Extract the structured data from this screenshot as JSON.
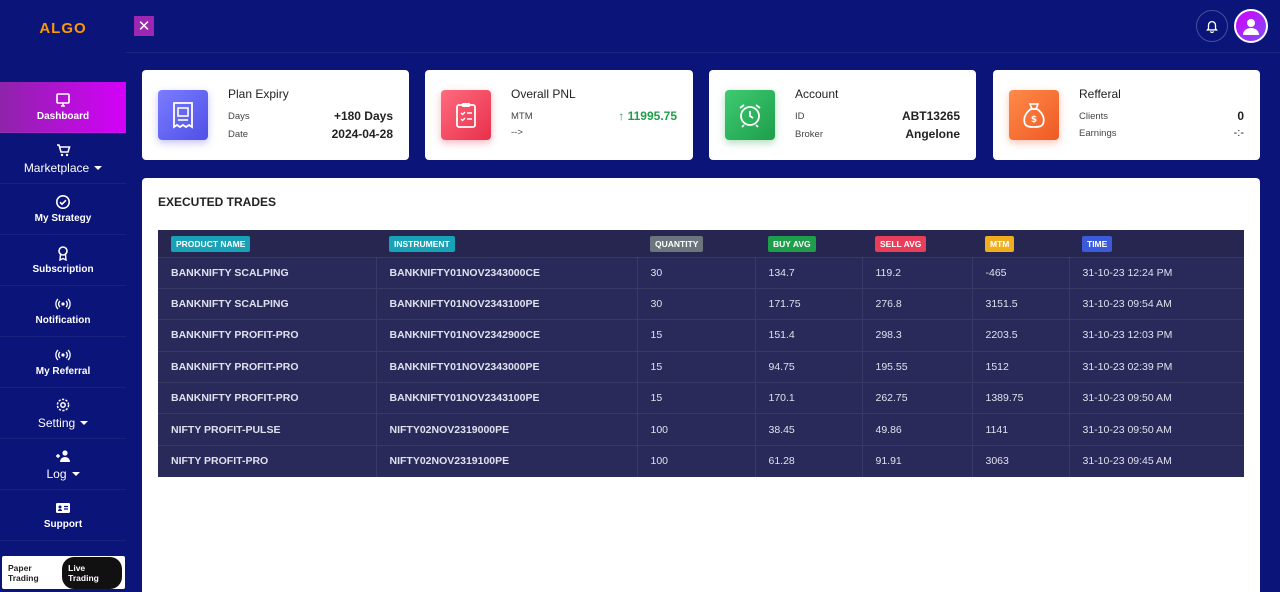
{
  "brand": {
    "logo_text": "ALGO"
  },
  "sidebar": {
    "items": [
      {
        "label": "Dashboard"
      },
      {
        "label": "Marketplace"
      },
      {
        "label": "My Strategy"
      },
      {
        "label": "Subscription"
      },
      {
        "label": "Notification"
      },
      {
        "label": "My Referral"
      },
      {
        "label": "Setting"
      },
      {
        "label": "Log"
      },
      {
        "label": "Support"
      }
    ],
    "mode": {
      "paper": "Paper Trading",
      "live": "Live Trading"
    }
  },
  "topbar": {
    "close_glyph": "✕"
  },
  "cards": {
    "plan": {
      "title": "Plan Expiry",
      "k1": "Days",
      "v1": "+180 Days",
      "k2": "Date",
      "v2": "2024-04-28",
      "color": "#5b5cf0"
    },
    "pnl": {
      "title": "Overall PNL",
      "k1": "MTM",
      "v1": "11995.75",
      "k2": "-->",
      "v2": "",
      "color": "#f0405a"
    },
    "account": {
      "title": "Account",
      "k1": "ID",
      "v1": "ABT13265",
      "k2": "Broker",
      "v2": "Angelone",
      "color": "#2eaa5a"
    },
    "referral": {
      "title": "Refferal",
      "k1": "Clients",
      "v1": "0",
      "k2": "Earnings",
      "v2": "-:-",
      "color": "#f26a3a"
    }
  },
  "trades": {
    "title": "EXECUTED TRADES",
    "headers": [
      "PRODUCT NAME",
      "INSTRUMENT",
      "QUANTITY",
      "BUY AVG",
      "SELL AVG",
      "MTM",
      "TIME"
    ],
    "header_colors": [
      "#17a2b8",
      "#17a2b8",
      "#6c757d",
      "#1e9e4a",
      "#e83e5a",
      "#f0ad1e",
      "#3b5bdb"
    ],
    "rows": [
      [
        "BANKNIFTY SCALPING",
        "BANKNIFTY01NOV2343000CE",
        "30",
        "134.7",
        "119.2",
        "-465",
        "31-10-23 12:24 PM"
      ],
      [
        "BANKNIFTY SCALPING",
        "BANKNIFTY01NOV2343100PE",
        "30",
        "171.75",
        "276.8",
        "3151.5",
        "31-10-23 09:54 AM"
      ],
      [
        "BANKNIFTY PROFIT-PRO",
        "BANKNIFTY01NOV2342900CE",
        "15",
        "151.4",
        "298.3",
        "2203.5",
        "31-10-23 12:03 PM"
      ],
      [
        "BANKNIFTY PROFIT-PRO",
        "BANKNIFTY01NOV2343000PE",
        "15",
        "94.75",
        "195.55",
        "1512",
        "31-10-23 02:39 PM"
      ],
      [
        "BANKNIFTY PROFIT-PRO",
        "BANKNIFTY01NOV2343100PE",
        "15",
        "170.1",
        "262.75",
        "1389.75",
        "31-10-23 09:50 AM"
      ],
      [
        "NIFTY PROFIT-PULSE",
        "NIFTY02NOV2319000PE",
        "100",
        "38.45",
        "49.86",
        "1141",
        "31-10-23 09:50 AM"
      ],
      [
        "NIFTY PROFIT-PRO",
        "NIFTY02NOV2319100PE",
        "100",
        "61.28",
        "91.91",
        "3063",
        "31-10-23 09:45 AM"
      ]
    ]
  }
}
